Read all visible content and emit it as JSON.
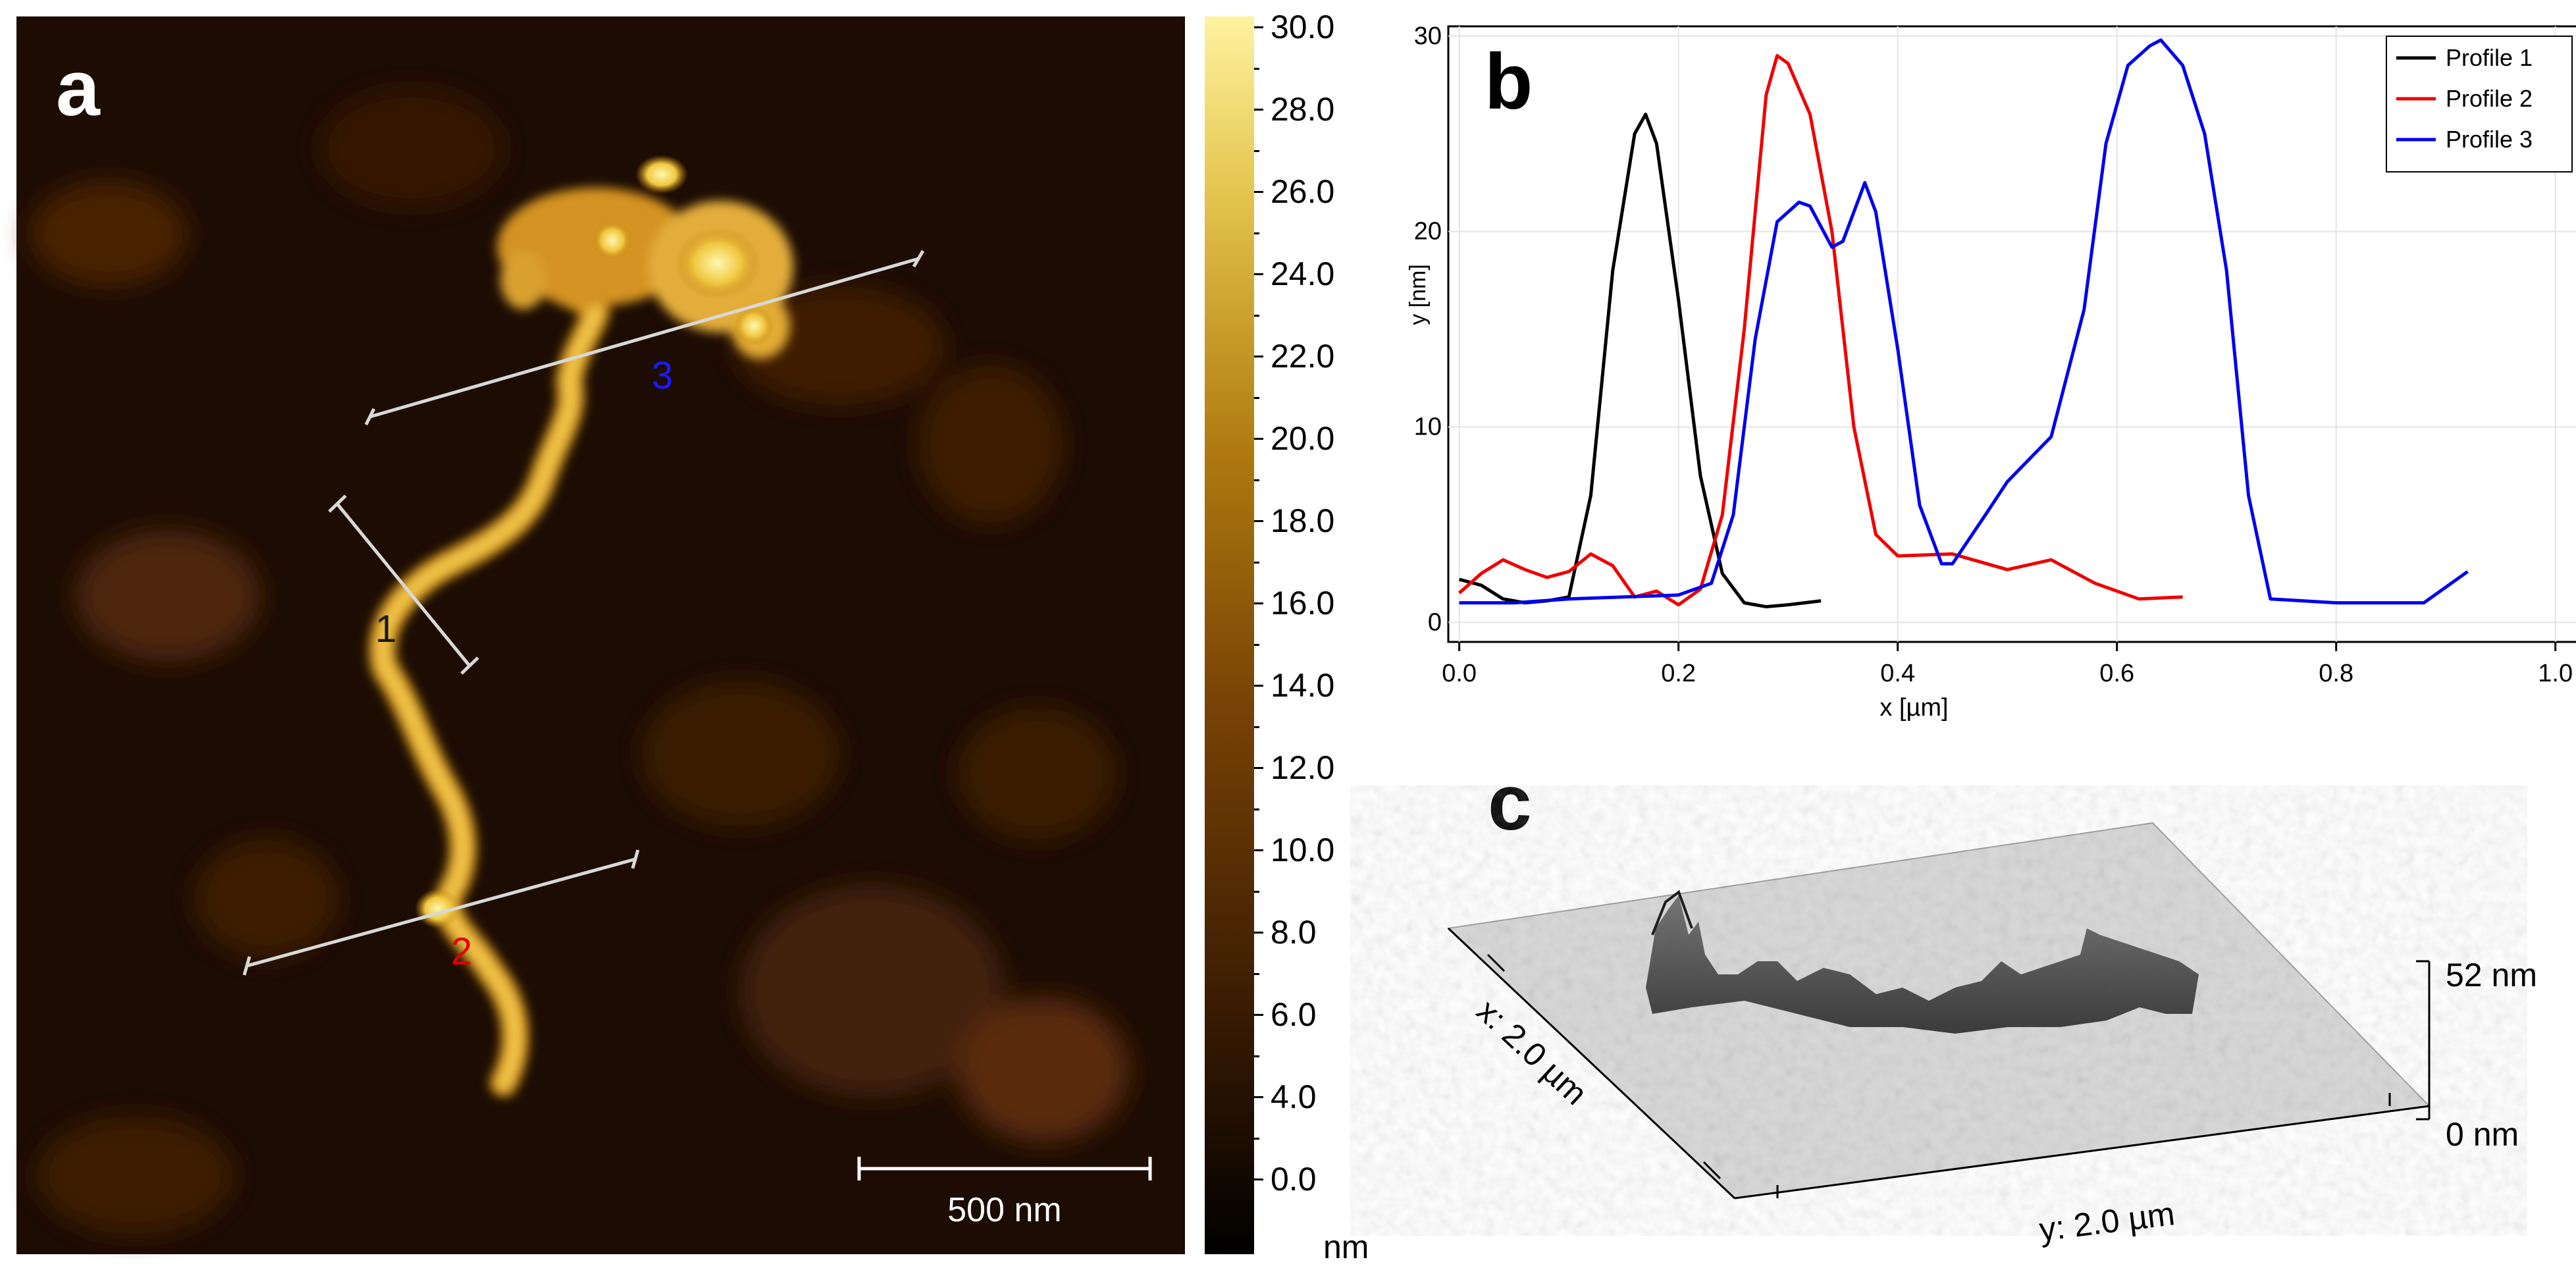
{
  "panels": {
    "a": {
      "label": "a",
      "scale_bar_label": "500 nm",
      "profile_markers": [
        {
          "label": "1",
          "color": "#1a1a1a"
        },
        {
          "label": "2",
          "color": "#e00000"
        },
        {
          "label": "3",
          "color": "#1a1aff"
        }
      ]
    },
    "b": {
      "label": "b"
    },
    "c": {
      "label": "c",
      "x_axis_label": "x: 2.0 µm",
      "y_axis_label": "y: 2.0 µm",
      "z_top_label": "52 nm",
      "z_bottom_label": "0 nm"
    }
  },
  "colorbar": {
    "ticks": [
      "30.0",
      "28.0",
      "26.0",
      "24.0",
      "22.0",
      "20.0",
      "18.0",
      "16.0",
      "14.0",
      "12.0",
      "10.0",
      "8.0",
      "6.0",
      "4.0",
      "0.0"
    ],
    "unit": "nm",
    "min": 0,
    "max": 30
  },
  "chart_data": {
    "type": "line",
    "title": "",
    "xlabel": "x [µm]",
    "ylabel": "y [nm]",
    "xlim": [
      0.0,
      1.0
    ],
    "ylim": [
      0,
      30
    ],
    "xticks": [
      "0.0",
      "0.2",
      "0.4",
      "0.6",
      "0.8",
      "1.0"
    ],
    "yticks": [
      "0",
      "10",
      "20",
      "30"
    ],
    "legend_position": "top-right",
    "grid": true,
    "series": [
      {
        "name": "Profile 1",
        "color": "#000000",
        "x": [
          0.0,
          0.02,
          0.04,
          0.06,
          0.08,
          0.1,
          0.12,
          0.14,
          0.16,
          0.17,
          0.18,
          0.2,
          0.22,
          0.24,
          0.26,
          0.28,
          0.3,
          0.33
        ],
        "y": [
          2.2,
          1.9,
          1.2,
          1.0,
          1.1,
          1.3,
          6.5,
          18.0,
          25.0,
          26.0,
          24.5,
          16.5,
          7.5,
          2.5,
          1.0,
          0.8,
          0.9,
          1.1
        ]
      },
      {
        "name": "Profile 2",
        "color": "#ee0000",
        "x": [
          0.0,
          0.02,
          0.04,
          0.06,
          0.08,
          0.1,
          0.12,
          0.14,
          0.16,
          0.18,
          0.2,
          0.22,
          0.24,
          0.26,
          0.28,
          0.29,
          0.3,
          0.32,
          0.34,
          0.36,
          0.38,
          0.4,
          0.45,
          0.5,
          0.54,
          0.58,
          0.62,
          0.66
        ],
        "y": [
          1.5,
          2.5,
          3.2,
          2.7,
          2.3,
          2.6,
          3.5,
          2.9,
          1.3,
          1.6,
          0.9,
          1.7,
          5.5,
          15.0,
          27.0,
          29.0,
          28.6,
          26.0,
          20.0,
          10.0,
          4.5,
          3.4,
          3.5,
          2.7,
          3.2,
          2.0,
          1.2,
          1.3
        ]
      },
      {
        "name": "Profile 3",
        "color": "#0000ee",
        "x": [
          0.0,
          0.05,
          0.1,
          0.15,
          0.2,
          0.23,
          0.25,
          0.27,
          0.29,
          0.31,
          0.32,
          0.34,
          0.35,
          0.37,
          0.38,
          0.4,
          0.42,
          0.44,
          0.45,
          0.48,
          0.5,
          0.54,
          0.57,
          0.59,
          0.61,
          0.63,
          0.64,
          0.66,
          0.68,
          0.7,
          0.72,
          0.74,
          0.8,
          0.88,
          0.92
        ],
        "y": [
          1.0,
          1.0,
          1.2,
          1.3,
          1.4,
          2.0,
          5.5,
          14.5,
          20.5,
          21.5,
          21.3,
          19.2,
          19.5,
          22.5,
          21.0,
          14.0,
          6.0,
          3.0,
          3.0,
          5.5,
          7.2,
          9.5,
          16.0,
          24.5,
          28.5,
          29.5,
          29.8,
          28.5,
          25.0,
          18.0,
          6.5,
          1.2,
          1.0,
          1.0,
          2.6
        ]
      }
    ]
  }
}
